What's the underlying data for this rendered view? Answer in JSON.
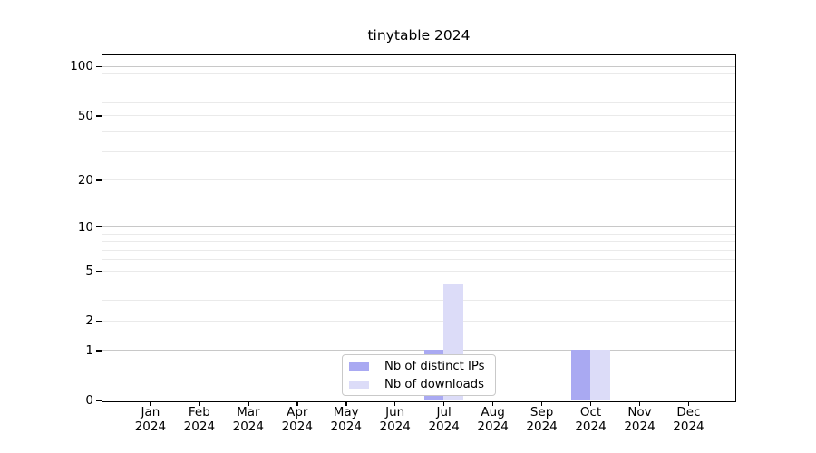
{
  "title": "tinytable 2024",
  "chart_data": {
    "type": "bar",
    "title": "tinytable 2024",
    "categories": [
      "Jan",
      "Feb",
      "Mar",
      "Apr",
      "May",
      "Jun",
      "Jul",
      "Aug",
      "Sep",
      "Oct",
      "Nov",
      "Dec"
    ],
    "x_year_label": "2024",
    "series": [
      {
        "name": "Nb of distinct IPs",
        "color": "#a9a9f2",
        "values": [
          0,
          0,
          0,
          0,
          0,
          0,
          1,
          0,
          0,
          1,
          0,
          0
        ]
      },
      {
        "name": "Nb of downloads",
        "color": "#dcdcf8",
        "values": [
          0,
          0,
          0,
          0,
          0,
          0,
          4,
          0,
          0,
          1,
          0,
          0
        ]
      }
    ],
    "y_axis": {
      "scale": "log1p",
      "tick_values": [
        0,
        1,
        2,
        5,
        10,
        20,
        50,
        100
      ],
      "minor_gridline_values": [
        2,
        3,
        4,
        5,
        6,
        7,
        8,
        9,
        20,
        30,
        40,
        50,
        60,
        70,
        80,
        90
      ],
      "major_gridline_values": [
        1,
        10,
        100
      ],
      "range": [
        0,
        115
      ]
    },
    "grid": "horizontal",
    "legend_position": "inside-bottom-center"
  },
  "colors": {
    "bar_distinct_ips": "#a9a9f2",
    "bar_downloads": "#dcdcf8",
    "grid_minor": "#eaeaea",
    "grid_major": "#c8c8c8",
    "axis": "#000000",
    "legend_border": "#c9c9c9",
    "background": "#ffffff"
  }
}
